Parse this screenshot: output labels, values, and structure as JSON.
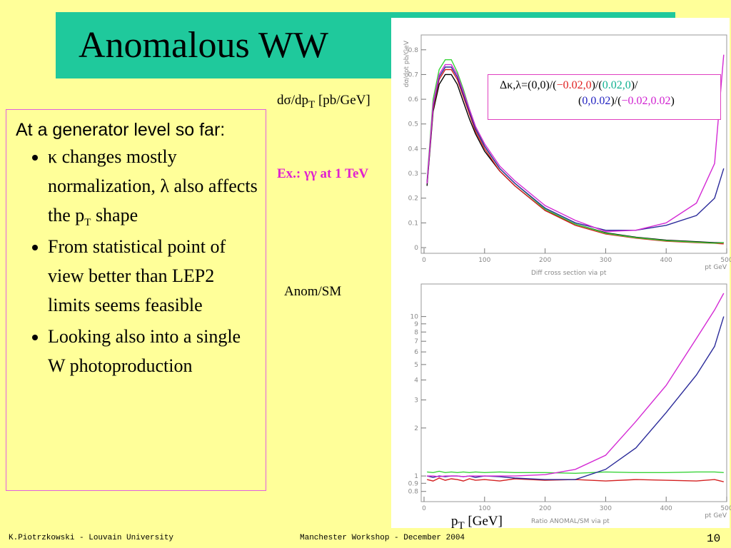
{
  "title": "Anomalous WW",
  "ylabel_top": {
    "main": "dσ/dp",
    "sub": "T",
    "rest": " [pb/GeV]"
  },
  "example": "Ex.: γγ at 1 TeV",
  "ylabel_bottom": "Anom/SM",
  "xlabel": {
    "main": "p",
    "sub": "T",
    "rest": " [GeV]"
  },
  "box": {
    "heading": "At a generator level so far:",
    "bullets": [
      {
        "parts": [
          "κ changes mostly normalization, λ also affects the p",
          "T",
          " shape"
        ]
      },
      {
        "parts": [
          "From statistical point of view better than LEP2 limits seems feasible"
        ]
      },
      {
        "parts": [
          "Looking also into a single W photoproduction"
        ]
      }
    ]
  },
  "legend": {
    "lines": [
      [
        {
          "text": "Δκ,λ=(0,0)/(",
          "color": "#000000"
        },
        {
          "text": "−0.02,0",
          "color": "#e02020"
        },
        {
          "text": ")/(",
          "color": "#000000"
        },
        {
          "text": "0.02,0",
          "color": "#10b090"
        },
        {
          "text": ")/",
          "color": "#000000"
        }
      ],
      [
        {
          "text": "(",
          "color": "#000000"
        },
        {
          "text": "0,0.02",
          "color": "#2020c0"
        },
        {
          "text": ")/(",
          "color": "#000000"
        },
        {
          "text": "−0.02,0.02",
          "color": "#d020d0"
        },
        {
          "text": ")",
          "color": "#000000"
        }
      ]
    ]
  },
  "footer": {
    "left": "K.Piotrzkowski - Louvain University",
    "center": "Manchester Workshop - December 2004",
    "page": "10"
  },
  "chart_data": [
    {
      "type": "line",
      "title": "Diff cross section via pt",
      "xlabel": "pt GeV",
      "ylabel": "dσ/dpt  pb/GeV",
      "x": [
        5,
        15,
        25,
        35,
        45,
        55,
        65,
        75,
        85,
        100,
        125,
        150,
        200,
        250,
        300,
        350,
        400,
        450,
        480,
        495
      ],
      "xlim": [
        0,
        500
      ],
      "xticks": [
        0,
        100,
        200,
        300,
        400,
        500
      ],
      "ylim": [
        0,
        0.86
      ],
      "yticks": [
        0,
        0.1,
        0.2,
        0.3,
        0.4,
        0.5,
        0.6,
        0.7,
        0.8
      ],
      "series": [
        {
          "color": "#000000",
          "values": [
            0.25,
            0.55,
            0.66,
            0.7,
            0.7,
            0.66,
            0.59,
            0.52,
            0.46,
            0.39,
            0.31,
            0.25,
            0.15,
            0.095,
            0.06,
            0.042,
            0.03,
            0.024,
            0.02,
            0.02
          ]
        },
        {
          "color": "#d42020",
          "values": [
            0.26,
            0.56,
            0.68,
            0.72,
            0.72,
            0.68,
            0.61,
            0.54,
            0.47,
            0.4,
            0.31,
            0.25,
            0.15,
            0.09,
            0.055,
            0.038,
            0.026,
            0.02,
            0.017,
            0.015
          ]
        },
        {
          "color": "#3ad43a",
          "values": [
            0.27,
            0.6,
            0.72,
            0.76,
            0.76,
            0.71,
            0.64,
            0.56,
            0.49,
            0.41,
            0.32,
            0.26,
            0.155,
            0.095,
            0.058,
            0.04,
            0.028,
            0.022,
            0.018,
            0.02
          ]
        },
        {
          "color": "#2b2b9a",
          "values": [
            0.26,
            0.57,
            0.69,
            0.73,
            0.73,
            0.69,
            0.62,
            0.55,
            0.48,
            0.41,
            0.32,
            0.26,
            0.16,
            0.1,
            0.07,
            0.07,
            0.09,
            0.13,
            0.2,
            0.32
          ]
        },
        {
          "color": "#d42ad4",
          "values": [
            0.26,
            0.58,
            0.7,
            0.74,
            0.74,
            0.7,
            0.63,
            0.56,
            0.49,
            0.42,
            0.33,
            0.27,
            0.17,
            0.11,
            0.065,
            0.07,
            0.1,
            0.18,
            0.34,
            0.78
          ]
        }
      ]
    },
    {
      "type": "line",
      "title": "Ratio ANOMAL/SM via pt",
      "xlabel": "pt GeV",
      "log_y": true,
      "x": [
        5,
        15,
        25,
        35,
        45,
        55,
        65,
        75,
        85,
        100,
        125,
        150,
        200,
        250,
        300,
        350,
        400,
        450,
        480,
        495
      ],
      "xlim": [
        0,
        500
      ],
      "xticks": [
        0,
        100,
        200,
        300,
        400,
        500
      ],
      "ylim": [
        0.75,
        16
      ],
      "yticks": [
        0.8,
        0.9,
        1,
        2,
        3,
        4,
        5,
        6,
        7,
        8,
        9,
        10
      ],
      "series": [
        {
          "color": "#d42020",
          "values": [
            0.95,
            0.93,
            0.97,
            0.94,
            0.96,
            0.95,
            0.93,
            0.96,
            0.94,
            0.95,
            0.93,
            0.96,
            0.94,
            0.95,
            0.93,
            0.95,
            0.94,
            0.93,
            0.95,
            0.92
          ]
        },
        {
          "color": "#3ad43a",
          "values": [
            1.06,
            1.05,
            1.07,
            1.05,
            1.06,
            1.05,
            1.06,
            1.05,
            1.06,
            1.05,
            1.06,
            1.05,
            1.05,
            1.04,
            1.06,
            1.05,
            1.05,
            1.06,
            1.06,
            1.05
          ]
        },
        {
          "color": "#2b2b9a",
          "values": [
            1.0,
            0.98,
            1.0,
            0.99,
            1.0,
            1.0,
            0.99,
            1.0,
            0.98,
            1.0,
            0.99,
            0.97,
            0.95,
            0.95,
            1.1,
            1.5,
            2.5,
            4.3,
            6.5,
            10
          ]
        },
        {
          "color": "#d42ad4",
          "values": [
            1.0,
            1.0,
            0.99,
            1.0,
            1.0,
            1.0,
            0.99,
            1.0,
            1.0,
            1.0,
            1.0,
            1.0,
            1.02,
            1.1,
            1.35,
            2.2,
            3.7,
            7.3,
            11,
            14
          ]
        }
      ]
    }
  ]
}
